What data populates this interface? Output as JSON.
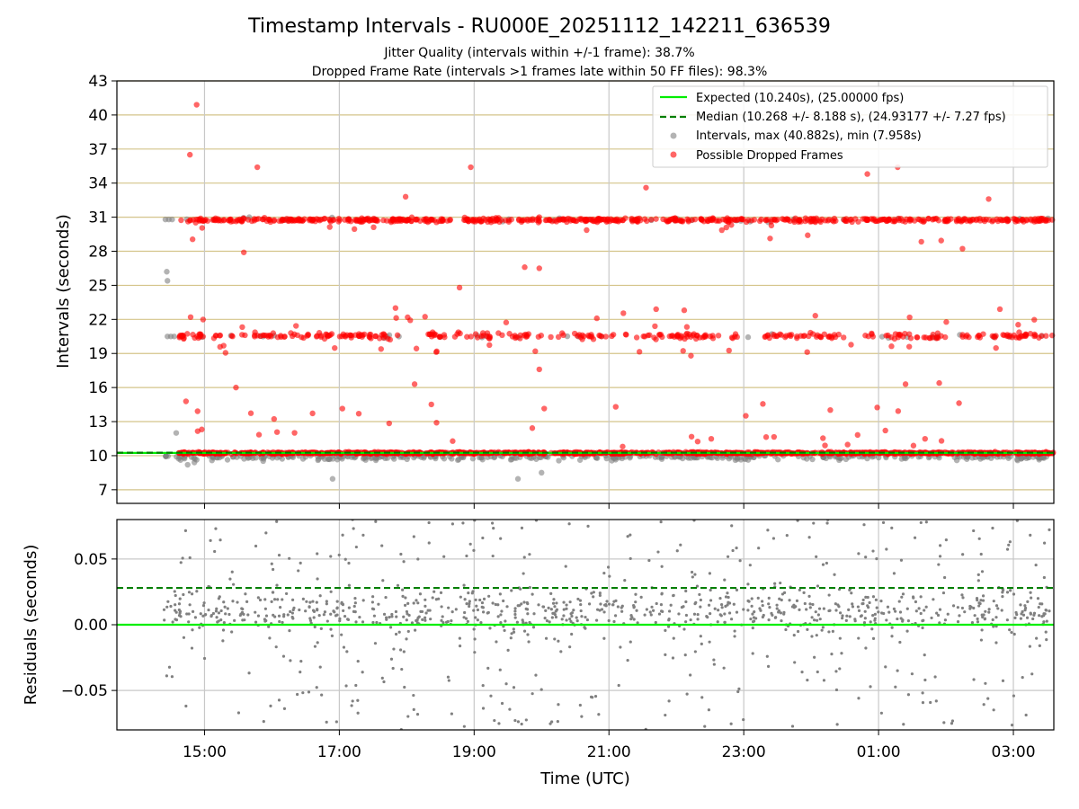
{
  "figure": {
    "title": "Timestamp Intervals - RU000E_20251112_142211_636539",
    "subtitle_line1": "Jitter Quality (intervals within +/-1 frame): 38.7%",
    "subtitle_line2": "Dropped Frame Rate (intervals >1 frames late within 50 FF files): 98.3%"
  },
  "colors": {
    "expected": "#00ee00",
    "median": "#007f00",
    "intervals": "#808080",
    "dropped": "#ff0000",
    "hgrid_top": "#d4c48a",
    "vgrid": "#c8c8c8"
  },
  "chart_data": [
    {
      "type": "scatter",
      "panel": "top",
      "ylabel": "Intervals (seconds)",
      "xlabel": "",
      "ylim": [
        5.8,
        43
      ],
      "yticks": [
        7,
        10,
        13,
        16,
        19,
        22,
        25,
        28,
        31,
        34,
        37,
        40,
        43
      ],
      "xlim_hours": [
        13.7,
        27.6
      ],
      "xticks_hours": [
        15,
        17,
        19,
        21,
        23,
        25,
        27
      ],
      "xtick_labels": [
        "15:00",
        "17:00",
        "19:00",
        "21:00",
        "23:00",
        "01:00",
        "03:00"
      ],
      "grid": "horizontal lines at y ticks, vertical lines at x ticks",
      "legend_position": "top-right",
      "legend": {
        "expected": "Expected (10.240s), (25.00000 fps)",
        "median": "Median (10.268 +/- 8.188 s), (24.93177 +/- 7.27 fps)",
        "intervals": "Intervals, max (40.882s), min (7.958s)",
        "dropped": "Possible Dropped Frames"
      },
      "expected_value": 10.24,
      "median_value": 10.268,
      "time_range_hours": [
        14.37,
        27.6
      ],
      "series": [
        {
          "name": "Intervals, max (40.882s), min (7.958s)",
          "marker": "gray circle",
          "clusters": [
            10.2,
            20.5,
            30.8
          ]
        },
        {
          "name": "Possible Dropped Frames",
          "marker": "red circle",
          "clusters": [
            10.24,
            20.6,
            30.8
          ],
          "outliers": [
            {
              "x": "14:47",
              "y": 36.5
            },
            {
              "x": "14:53",
              "y": 40.9
            },
            {
              "x": "15:47",
              "y": 35.4
            },
            {
              "x": "18:57",
              "y": 35.4
            },
            {
              "x": "17:59",
              "y": 32.8
            },
            {
              "x": "21:33",
              "y": 33.6
            },
            {
              "x": "00:50",
              "y": 34.8
            },
            {
              "x": "01:17",
              "y": 35.4
            },
            {
              "x": "02:38",
              "y": 32.6
            },
            {
              "x": "15:35",
              "y": 27.9
            },
            {
              "x": "19:45",
              "y": 26.6
            },
            {
              "x": "19:58",
              "y": 26.5
            },
            {
              "x": "18:47",
              "y": 24.8
            },
            {
              "x": "17:50",
              "y": 23.0
            },
            {
              "x": "21:42",
              "y": 22.9
            },
            {
              "x": "22:07",
              "y": 22.8
            },
            {
              "x": "02:48",
              "y": 22.9
            },
            {
              "x": "22:13",
              "y": 18.8
            },
            {
              "x": "19:58",
              "y": 17.6
            },
            {
              "x": "18:07",
              "y": 16.3
            },
            {
              "x": "15:28",
              "y": 16.0
            },
            {
              "x": "01:24",
              "y": 16.3
            },
            {
              "x": "01:54",
              "y": 16.4
            }
          ]
        }
      ],
      "residual_outlier_note": "points above 30 s reach up to 40.882 s"
    },
    {
      "type": "scatter",
      "panel": "bottom",
      "ylabel": "Residuals (seconds)",
      "xlabel": "Time (UTC)",
      "ylim": [
        -0.08,
        0.08
      ],
      "yticks": [
        -0.05,
        0.0,
        0.05
      ],
      "ytick_labels": [
        "−0.05",
        "0.00",
        "0.05"
      ],
      "xlim_hours": [
        13.7,
        27.6
      ],
      "xticks_hours": [
        15,
        17,
        19,
        21,
        23,
        25,
        27
      ],
      "xtick_labels": [
        "15:00",
        "17:00",
        "19:00",
        "21:00",
        "23:00",
        "01:00",
        "03:00"
      ],
      "grid": "horizontal and vertical lines at ticks",
      "expected_residual": 0.0,
      "median_residual": 0.028,
      "series": [
        {
          "marker": "small gray dot",
          "approx_count": 1100,
          "range": [
            -0.08,
            0.08
          ],
          "concentration": [
            -0.02,
            0.04
          ]
        }
      ]
    }
  ]
}
